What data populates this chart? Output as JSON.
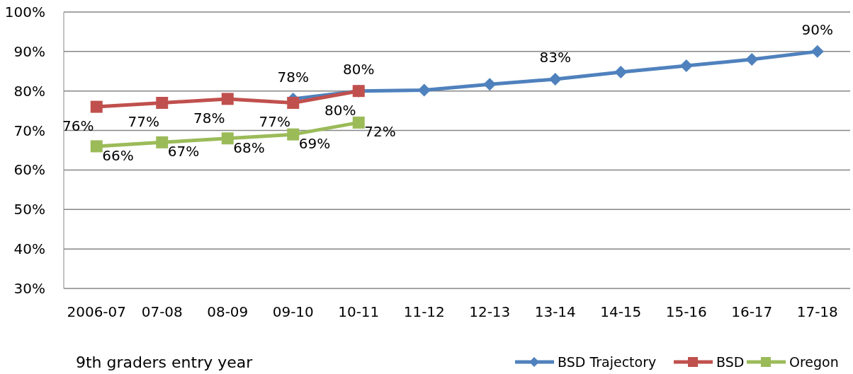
{
  "chart_data": {
    "type": "line",
    "xlabel": "9th graders entry year",
    "categories": [
      "2006-07",
      "07-08",
      "08-09",
      "09-10",
      "10-11",
      "11-12",
      "12-13",
      "13-14",
      "14-15",
      "15-16",
      "16-17",
      "17-18"
    ],
    "series": [
      {
        "name": "BSD Trajectory",
        "color": "#4f81bd",
        "marker": "diamond",
        "values": [
          null,
          null,
          null,
          78,
          80,
          80.2,
          81.7,
          83,
          84.8,
          86.4,
          88,
          90
        ],
        "value_labels": [
          null,
          null,
          null,
          "78%",
          "80%",
          null,
          null,
          "83%",
          null,
          null,
          null,
          "90%"
        ]
      },
      {
        "name": "BSD",
        "color": "#c0504d",
        "marker": "square",
        "values": [
          76,
          77,
          78,
          77,
          80,
          null,
          null,
          null,
          null,
          null,
          null,
          null
        ],
        "value_labels": [
          "76%",
          "77%",
          "78%",
          "77%",
          "80%",
          null,
          null,
          null,
          null,
          null,
          null,
          null
        ]
      },
      {
        "name": "Oregon",
        "color": "#9bbb59",
        "marker": "square",
        "values": [
          66,
          67,
          68,
          69,
          72,
          null,
          null,
          null,
          null,
          null,
          null,
          null
        ],
        "value_labels": [
          "66%",
          "67%",
          "68%",
          "69%",
          "72%",
          null,
          null,
          null,
          null,
          null,
          null,
          null
        ]
      }
    ],
    "ylim": [
      30,
      100
    ],
    "yticks": [
      {
        "value": 30,
        "label": "30%"
      },
      {
        "value": 40,
        "label": "40%"
      },
      {
        "value": 50,
        "label": "50%"
      },
      {
        "value": 60,
        "label": "60%"
      },
      {
        "value": 70,
        "label": "70%"
      },
      {
        "value": 80,
        "label": "80%"
      },
      {
        "value": 90,
        "label": "90%"
      },
      {
        "value": 100,
        "label": "100%"
      }
    ],
    "grid": "y",
    "legend": "bottom right"
  }
}
